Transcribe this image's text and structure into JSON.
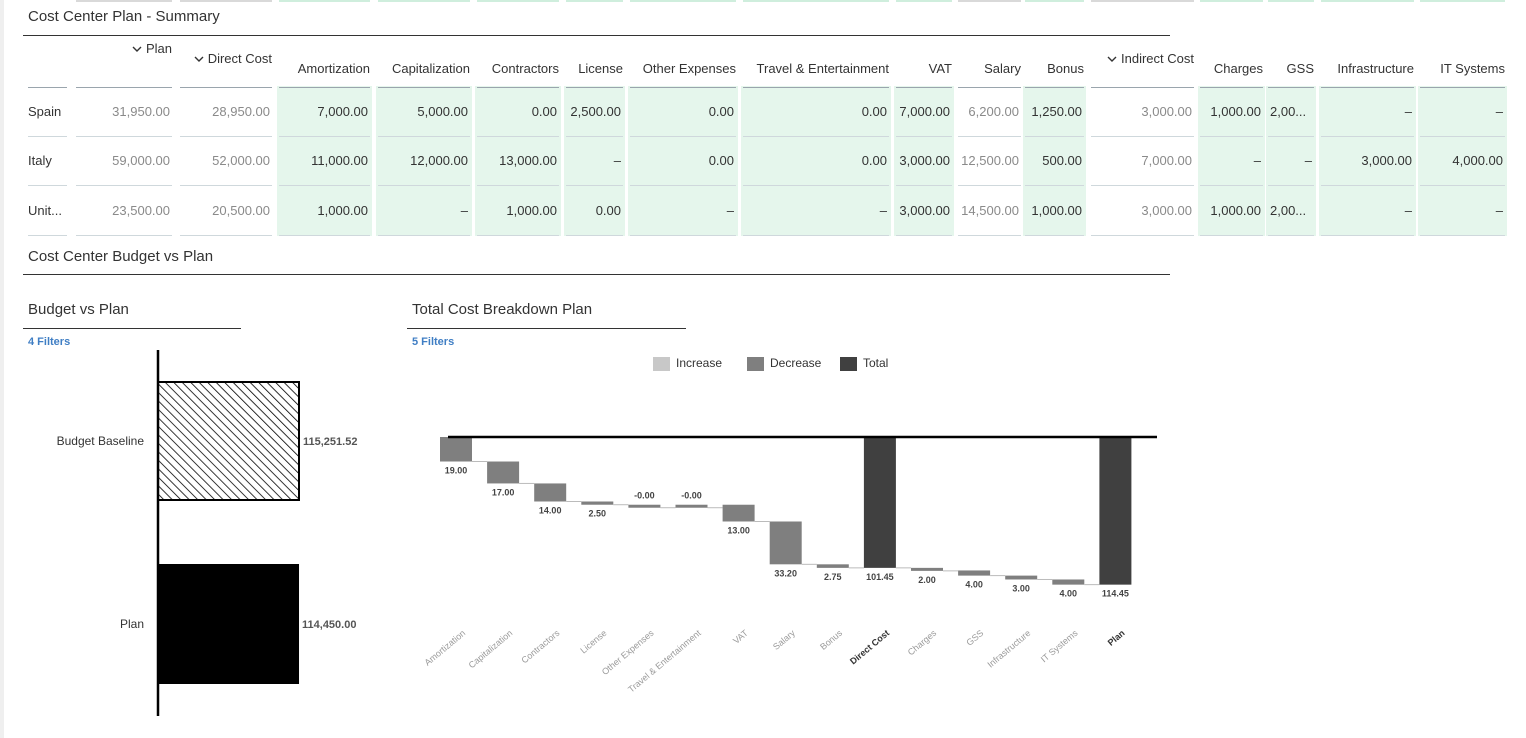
{
  "summary": {
    "title": "Cost Center Plan - Summary",
    "columns": [
      {
        "label": "Plan",
        "chevron": true,
        "chevron_icon": "chevron-down-icon"
      },
      {
        "label": "Direct Cost",
        "chevron": true,
        "chevron_icon": "chevron-down-icon"
      },
      {
        "label": "Amortization"
      },
      {
        "label": "Capitalization"
      },
      {
        "label": "Contractors"
      },
      {
        "label": "License"
      },
      {
        "label": "Other Expenses"
      },
      {
        "label": "Travel & Entertainment"
      },
      {
        "label": "VAT"
      },
      {
        "label": "Salary"
      },
      {
        "label": "Bonus"
      },
      {
        "label": "Indirect Cost",
        "chevron": true,
        "chevron_icon": "chevron-down-icon"
      },
      {
        "label": "Charges"
      },
      {
        "label": "GSS"
      },
      {
        "label": "Infrastructure"
      },
      {
        "label": "IT Systems"
      }
    ],
    "rows": [
      {
        "label": "Spain",
        "values": [
          "31,950.00",
          "28,950.00",
          "7,000.00",
          "5,000.00",
          "0.00",
          "2,500.00",
          "0.00",
          "0.00",
          "7,000.00",
          "6,200.00",
          "1,250.00",
          "3,000.00",
          "1,000.00",
          "2,00...",
          "–",
          "–"
        ]
      },
      {
        "label": "Italy",
        "values": [
          "59,000.00",
          "52,000.00",
          "11,000.00",
          "12,000.00",
          "13,000.00",
          "–",
          "0.00",
          "0.00",
          "3,000.00",
          "12,500.00",
          "500.00",
          "7,000.00",
          "–",
          "–",
          "3,000.00",
          "4,000.00"
        ]
      },
      {
        "label": "Unit...",
        "values": [
          "23,500.00",
          "20,500.00",
          "1,000.00",
          "–",
          "1,000.00",
          "0.00",
          "–",
          "–",
          "3,000.00",
          "14,500.00",
          "1,000.00",
          "3,000.00",
          "1,000.00",
          "2,00...",
          "–",
          "–"
        ]
      }
    ],
    "colors": {
      "highlight": "#e5f6ec"
    }
  },
  "budget_section": {
    "title": "Cost Center Budget vs Plan"
  },
  "budget_chart": {
    "title": "Budget vs Plan",
    "filters_label": "4 Filters",
    "chart_data": {
      "type": "bar",
      "orientation": "horizontal",
      "categories": [
        "Budget Baseline",
        "Plan"
      ],
      "values": [
        115251.52,
        114450
      ],
      "value_labels": [
        "115,251.52",
        "114,450.00"
      ],
      "patterns": [
        "hatched",
        "solid"
      ],
      "colors": [
        "#000000",
        "#000000"
      ]
    }
  },
  "waterfall_chart": {
    "title": "Total Cost Breakdown Plan",
    "filters_label": "5 Filters",
    "legend": [
      {
        "label": "Increase",
        "color": "#c8c8c8"
      },
      {
        "label": "Decrease",
        "color": "#7f7f7f"
      },
      {
        "label": "Total",
        "color": "#404040"
      }
    ],
    "chart_data": {
      "type": "waterfall",
      "categories": [
        "Amortization",
        "Capitalization",
        "Contractors",
        "License",
        "Other Expenses",
        "Travel & Entertainment",
        "VAT",
        "Salary",
        "Bonus",
        "Direct Cost",
        "Charges",
        "GSS",
        "Infrastructure",
        "IT Systems",
        "Plan"
      ],
      "values": [
        19.0,
        17.0,
        14.0,
        2.5,
        -0.0,
        -0.0,
        13.0,
        33.2,
        2.75,
        101.45,
        2.0,
        4.0,
        3.0,
        4.0,
        114.45
      ],
      "value_labels": [
        "19.00",
        "17.00",
        "14.00",
        "2.50",
        "-0.00",
        "-0.00",
        "13.00",
        "33.20",
        "2.75",
        "101.45",
        "2.00",
        "4.00",
        "3.00",
        "4.00",
        "114.45"
      ],
      "kinds": [
        "decrease",
        "decrease",
        "decrease",
        "decrease",
        "decrease",
        "decrease",
        "decrease",
        "decrease",
        "decrease",
        "total",
        "decrease",
        "decrease",
        "decrease",
        "decrease",
        "total"
      ],
      "bold_categories": [
        "Direct Cost",
        "Plan"
      ]
    }
  }
}
